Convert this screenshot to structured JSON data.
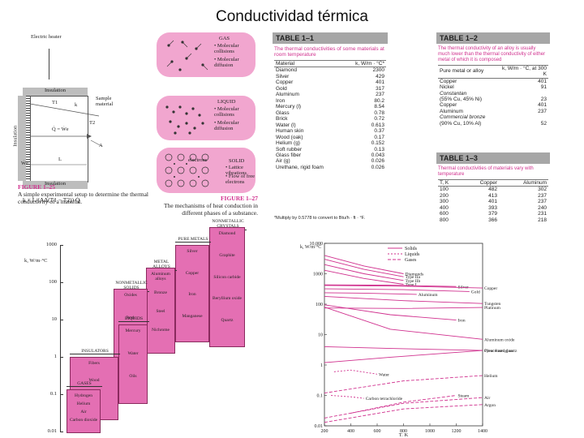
{
  "slide_title": "Conductividad térmica",
  "fig125": {
    "heater_label": "Electric heater",
    "insulation_top": "Insulation",
    "insulation_side": "Insulation",
    "insulation_bottom": "Insulation",
    "sample_label": "Sample material",
    "t1": "T1",
    "t2": "T2",
    "k": "k",
    "a": "A",
    "l": "L",
    "q_label": "Q̇ = Ẇe",
    "we_label": "Ẇe",
    "equation": "k = L/(AΔ(T1 − T2)) Q̇",
    "caption_num": "FIGURE 1–25",
    "caption_text": "A simple experimental setup to determine the thermal conductivity of a material."
  },
  "fig127": {
    "gas_title": "GAS",
    "gas_items": [
      "• Molecular collisions",
      "• Molecular diffusion"
    ],
    "liquid_title": "LIQUID",
    "liquid_items": [
      "• Molecular collisions",
      "• Molecular diffusion"
    ],
    "solid_title": "SOLID",
    "solid_items": [
      "• Lattice vibrations",
      "• Flow of free electrons"
    ],
    "electrons_label": "electrons",
    "caption_num": "FIGURE 1–27",
    "caption_text": "The mechanisms of heat conduction in different phases of a substance."
  },
  "table11": {
    "title": "TABLE 1–1",
    "subtitle": "The thermal conductivities of some materials at room temperature",
    "col_material": "Material",
    "col_k": "k, W/m · °C*",
    "rows": [
      [
        "Diamond",
        "2300"
      ],
      [
        "Silver",
        "429"
      ],
      [
        "Copper",
        "401"
      ],
      [
        "Gold",
        "317"
      ],
      [
        "Aluminum",
        "237"
      ],
      [
        "Iron",
        "80.2"
      ],
      [
        "Mercury (l)",
        "8.54"
      ],
      [
        "Glass",
        "0.78"
      ],
      [
        "Brick",
        "0.72"
      ],
      [
        "Water (l)",
        "0.613"
      ],
      [
        "Human skin",
        "0.37"
      ],
      [
        "Wood (oak)",
        "0.17"
      ],
      [
        "Helium (g)",
        "0.152"
      ],
      [
        "Soft rubber",
        "0.13"
      ],
      [
        "Glass fiber",
        "0.043"
      ],
      [
        "Air (g)",
        "0.026"
      ],
      [
        "Urethane, rigid foam",
        "0.026"
      ]
    ],
    "footnote": "*Multiply by 0.5778 to convert to Btu/h · ft · °F."
  },
  "table12": {
    "title": "TABLE 1–2",
    "subtitle": "The thermal conductivity of an alloy is usually much lower than the thermal conductivity of either metal of which it is composed",
    "col_material": "Pure metal or alloy",
    "col_k": "k, W/m · °C, at 300 K",
    "rows": [
      [
        "Copper",
        "401"
      ],
      [
        "Nickel",
        "91"
      ],
      [
        "Constantan",
        ""
      ],
      [
        "(55% Cu, 45% Ni)",
        "23"
      ],
      [
        "",
        ""
      ],
      [
        "Copper",
        "401"
      ],
      [
        "Aluminum",
        "237"
      ],
      [
        "Commercial bronze",
        ""
      ],
      [
        "(90% Cu, 10% Al)",
        "52"
      ]
    ]
  },
  "table13": {
    "title": "TABLE 1–3",
    "subtitle": "Thermal conductivities of materials vary with temperature",
    "col_t": "T, K",
    "col_cu": "Copper",
    "col_al": "Aluminum",
    "rows": [
      [
        "100",
        "482",
        "302"
      ],
      [
        "200",
        "413",
        "237"
      ],
      [
        "300",
        "401",
        "237"
      ],
      [
        "400",
        "393",
        "240"
      ],
      [
        "600",
        "379",
        "231"
      ],
      [
        "800",
        "366",
        "218"
      ]
    ]
  },
  "range_chart": {
    "ylabel": "k, W/m·°C",
    "yticks": [
      "1000",
      "100",
      "10",
      "1",
      "0.1",
      "0.01"
    ],
    "categories": [
      {
        "header": "NONMETALLIC CRYSTALS",
        "items": [
          "Diamond",
          "Graphite",
          "Silicon carbide",
          "Beryllium oxide",
          "Quartz"
        ]
      },
      {
        "header": "PURE METALS",
        "items": [
          "Silver",
          "Copper",
          "Iron",
          "Manganese"
        ]
      },
      {
        "header": "METAL ALLOYS",
        "items": [
          "Aluminum alloys",
          "Bronze",
          "Steel",
          "Nichrome"
        ]
      },
      {
        "header": "NONMETALLIC SOLIDS",
        "items": [
          "Oxides",
          "Rock",
          "Food",
          "Rubber"
        ]
      },
      {
        "header": "LIQUIDS",
        "items": [
          "Mercury",
          "Water",
          "Oils"
        ]
      },
      {
        "header": "INSULATORS",
        "items": [
          "Fibers",
          "Wood",
          "Foams"
        ]
      },
      {
        "header": "GASES",
        "items": [
          "Hydrogen",
          "Helium",
          "Air",
          "Carbon dioxide"
        ]
      }
    ]
  },
  "chart_data": {
    "type": "line",
    "xlabel": "T, K",
    "ylabel": "k, W/m·°C",
    "xticks": [
      200,
      400,
      600,
      800,
      1000,
      1200,
      1400
    ],
    "yticks": [
      "10,000",
      "1000",
      "100",
      "10",
      "1",
      "0.1",
      "0.01"
    ],
    "xlim": [
      200,
      1400
    ],
    "ylog": true,
    "ylim": [
      0.01,
      10000
    ],
    "legend": [
      "Solids",
      "Liquids",
      "Gases"
    ],
    "legend_position": "top",
    "series": [
      {
        "name": "Diamonds",
        "phase": "solid",
        "x": [
          200,
          500,
          800
        ],
        "y": [
          4000,
          1800,
          1000
        ]
      },
      {
        "name": "Type IIa",
        "phase": "solid",
        "x": [
          200,
          500,
          800
        ],
        "y": [
          3000,
          1400,
          800
        ]
      },
      {
        "name": "Type IIb",
        "phase": "solid",
        "x": [
          200,
          500,
          800
        ],
        "y": [
          2000,
          1000,
          600
        ]
      },
      {
        "name": "Type I",
        "phase": "solid",
        "x": [
          200,
          500,
          800
        ],
        "y": [
          1300,
          700,
          450
        ]
      },
      {
        "name": "Silver",
        "phase": "solid",
        "x": [
          200,
          700,
          1200
        ],
        "y": [
          430,
          420,
          380
        ]
      },
      {
        "name": "Copper",
        "phase": "solid",
        "x": [
          200,
          800,
          1400
        ],
        "y": [
          413,
          390,
          340
        ]
      },
      {
        "name": "Gold",
        "phase": "solid",
        "x": [
          200,
          800,
          1300
        ],
        "y": [
          320,
          300,
          260
        ]
      },
      {
        "name": "Aluminum",
        "phase": "solid",
        "x": [
          200,
          500,
          900
        ],
        "y": [
          237,
          230,
          210
        ]
      },
      {
        "name": "Tungsten",
        "phase": "solid",
        "x": [
          200,
          800,
          1400
        ],
        "y": [
          180,
          130,
          105
        ]
      },
      {
        "name": "Platinum",
        "phase": "solid",
        "x": [
          200,
          800,
          1400
        ],
        "y": [
          75,
          72,
          78
        ]
      },
      {
        "name": "Iron",
        "phase": "solid",
        "x": [
          200,
          700,
          1200
        ],
        "y": [
          95,
          45,
          30
        ]
      },
      {
        "name": "Aluminum oxide",
        "phase": "solid",
        "x": [
          200,
          700,
          1400
        ],
        "y": [
          80,
          15,
          7
        ]
      },
      {
        "name": "Pyroceram glass",
        "phase": "solid",
        "x": [
          200,
          700,
          1400
        ],
        "y": [
          4,
          3.5,
          3
        ]
      },
      {
        "name": "Clear fused quartz",
        "phase": "solid",
        "x": [
          200,
          700,
          1400
        ],
        "y": [
          1.2,
          1.8,
          3
        ]
      },
      {
        "name": "Water",
        "phase": "liquid",
        "x": [
          273,
          400,
          600
        ],
        "y": [
          0.6,
          0.68,
          0.5
        ]
      },
      {
        "name": "Helium",
        "phase": "gas",
        "x": [
          200,
          800,
          1400
        ],
        "y": [
          0.12,
          0.3,
          0.45
        ]
      },
      {
        "name": "Carbon tetrachloride",
        "phase": "liquid",
        "x": [
          250,
          400,
          500
        ],
        "y": [
          0.1,
          0.09,
          0.08
        ]
      },
      {
        "name": "Steam",
        "phase": "gas",
        "x": [
          400,
          800,
          1200
        ],
        "y": [
          0.026,
          0.06,
          0.1
        ]
      },
      {
        "name": "Air",
        "phase": "gas",
        "x": [
          200,
          800,
          1400
        ],
        "y": [
          0.018,
          0.055,
          0.085
        ]
      },
      {
        "name": "Argon",
        "phase": "gas",
        "x": [
          200,
          800,
          1400
        ],
        "y": [
          0.013,
          0.036,
          0.05
        ]
      }
    ]
  },
  "colors": {
    "accent": "#d0308e",
    "pink_fill": "#f1a6cf",
    "bar_fill": "#e46fb3",
    "header_gray": "#a6a6a6"
  }
}
